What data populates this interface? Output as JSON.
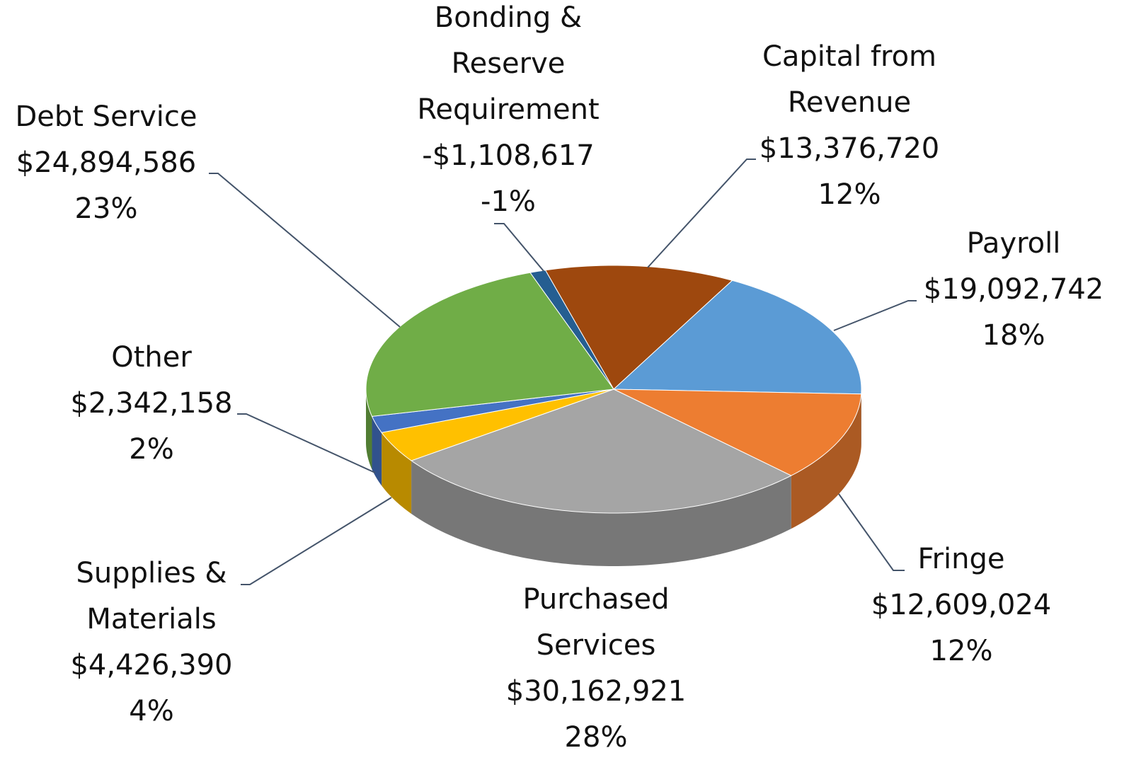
{
  "chart_data": {
    "type": "pie",
    "categories": [
      "Capital from Revenue",
      "Payroll",
      "Fringe",
      "Purchased Services",
      "Supplies & Materials",
      "Other",
      "Debt Service",
      "Bonding & Reserve Requirement"
    ],
    "values": [
      13376720,
      19092742,
      12609024,
      30162921,
      4426390,
      2342158,
      24894586,
      -1108617
    ],
    "value_labels": [
      "$13,376,720",
      "$19,092,742",
      "$12,609,024",
      "$30,162,921",
      "$4,426,390",
      "$2,342,158",
      "$24,894,586",
      "-$1,108,617"
    ],
    "percent_labels": [
      "12%",
      "18%",
      "12%",
      "28%",
      "4%",
      "2%",
      "23%",
      "-1%"
    ],
    "colors": [
      "#9e480e",
      "#5b9bd5",
      "#ed7d31",
      "#a5a5a5",
      "#ffc000",
      "#4472c4",
      "#70ad47",
      "#255e91"
    ]
  }
}
